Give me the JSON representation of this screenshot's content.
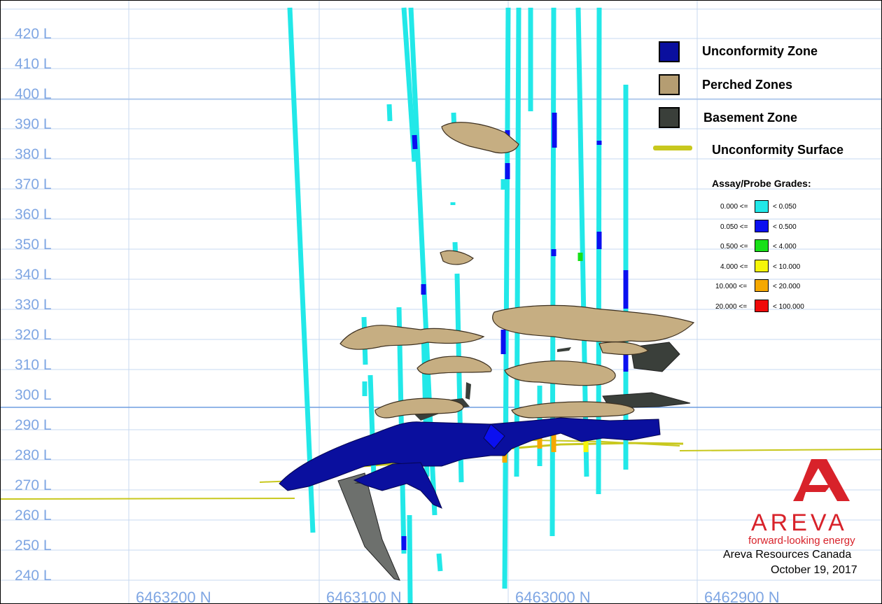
{
  "levels": [
    "420 L",
    "410 L",
    "400 L",
    "390 L",
    "380 L",
    "370 L",
    "360 L",
    "350 L",
    "340 L",
    "330 L",
    "320 L",
    "310 L",
    "300 L",
    "290 L",
    "280 L",
    "270 L",
    "260 L",
    "250 L",
    "240 L"
  ],
  "northings": [
    "6463200 N",
    "6463100 N",
    "6463000 N",
    "6462900 N"
  ],
  "legend": {
    "items": [
      {
        "label": "Unconformity Zone",
        "color": "#0a0f9e"
      },
      {
        "label": "Perched Zones",
        "color": "#b59d72"
      },
      {
        "label": "Basement  Zone",
        "color": "#3a3f3a"
      },
      {
        "label": "Unconformity Surface",
        "color": "#c8c81e"
      }
    ],
    "grades_title": "Assay/Probe Grades:",
    "grades": [
      {
        "low": "0.000 <=",
        "high": "< 0.050",
        "color": "#22e8e8"
      },
      {
        "low": "0.050 <=",
        "high": "< 0.500",
        "color": "#0b10f0"
      },
      {
        "low": "0.500 <=",
        "high": "< 4.000",
        "color": "#18e018"
      },
      {
        "low": "4.000 <=",
        "high": "< 10.000",
        "color": "#f5f50a"
      },
      {
        "low": "10.000 <=",
        "high": "< 20.000",
        "color": "#f5a800"
      },
      {
        "low": "20.000 <=",
        "high": "< 100.000",
        "color": "#f00a0a"
      }
    ]
  },
  "logo": {
    "word": "AREVA",
    "tagline": "forward-looking energy",
    "company": "Areva Resources Canada",
    "date": "October 19, 2017"
  }
}
